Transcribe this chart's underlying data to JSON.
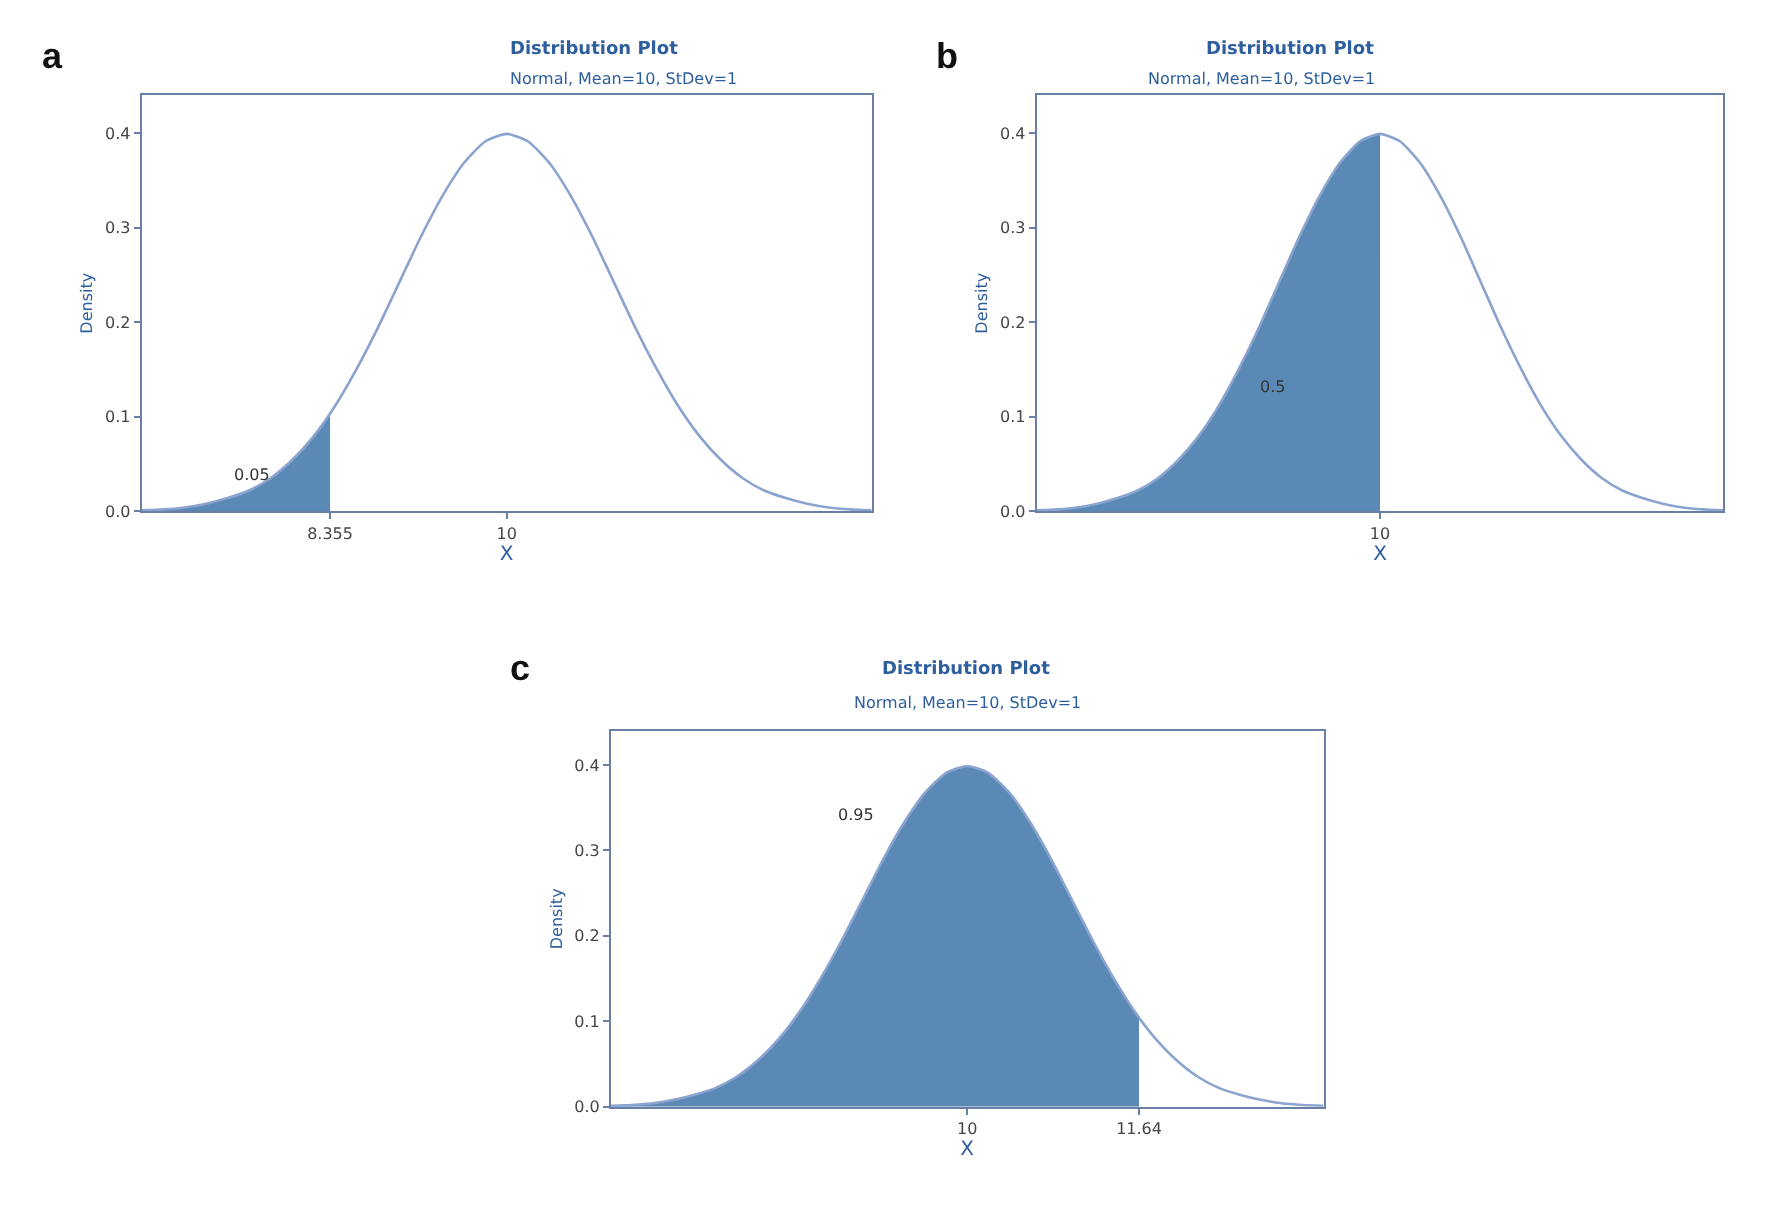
{
  "chart_data": [
    {
      "type": "line",
      "title": "Distribution Plot",
      "subtitle": "Normal, Mean=10, StDev=1",
      "xlabel": "X",
      "ylabel": "Density",
      "xlim": [
        6.6,
        13.4
      ],
      "ylim": [
        0,
        0.44
      ],
      "xticks": [
        8.355,
        10
      ],
      "yticks": [
        {
          "value": 0,
          "label": "0.0"
        },
        {
          "value": 0.1,
          "label": "0.1"
        },
        {
          "value": 0.2,
          "label": "0.2"
        },
        {
          "value": 0.3,
          "label": "0.3"
        },
        {
          "value": 0.4,
          "label": "0.4"
        }
      ],
      "marker": "none",
      "line_style": "solid",
      "series": [
        {
          "type": "area",
          "color": "#5b89b6",
          "x": [
            6.6,
            6.8,
            7.0,
            7.2,
            7.4,
            7.6,
            7.8,
            8.0,
            8.2,
            8.355
          ],
          "values": [
            0.001,
            0.002,
            0.004,
            0.008,
            0.014,
            0.022,
            0.035,
            0.054,
            0.079,
            0.103
          ]
        },
        {
          "color": "#8aa4cf",
          "x": [
            6.6,
            6.8,
            7.0,
            7.2,
            7.4,
            7.6,
            7.8,
            8.0,
            8.2,
            8.4,
            8.6,
            8.8,
            9.0,
            9.2,
            9.4,
            9.6,
            9.8,
            10.0,
            10.2,
            10.4,
            10.6,
            10.8,
            11.0,
            11.2,
            11.4,
            11.6,
            11.8,
            12.0,
            12.2,
            12.4,
            12.6,
            12.8,
            13.0,
            13.2,
            13.4
          ],
          "values": [
            0.001,
            0.002,
            0.004,
            0.008,
            0.014,
            0.022,
            0.035,
            0.054,
            0.079,
            0.111,
            0.15,
            0.194,
            0.242,
            0.29,
            0.333,
            0.368,
            0.391,
            0.399,
            0.391,
            0.368,
            0.333,
            0.29,
            0.242,
            0.194,
            0.15,
            0.111,
            0.079,
            0.054,
            0.035,
            0.022,
            0.014,
            0.008,
            0.004,
            0.002,
            0.001
          ]
        }
      ],
      "annotations": [
        "a",
        "0.05"
      ]
    },
    {
      "type": "line",
      "title": "Distribution Plot",
      "subtitle": "Normal, Mean=10, StDev=1",
      "xlabel": "X",
      "ylabel": "Density",
      "categories": [
        null,
        null,
        null,
        null,
        null,
        null,
        null,
        null,
        null,
        null,
        null,
        null,
        null,
        null,
        null,
        null,
        null,
        "10",
        null,
        null,
        null,
        null,
        null,
        null,
        null,
        null,
        null,
        null,
        null,
        null,
        null,
        null,
        null,
        null,
        null
      ],
      "ylim": [
        0,
        0.44
      ],
      "yticks": [
        {
          "value": 0,
          "label": "0.0"
        },
        {
          "value": 0.1,
          "label": "0.1"
        },
        {
          "value": 0.2,
          "label": "0.2"
        },
        {
          "value": 0.3,
          "label": "0.3"
        },
        {
          "value": 0.4,
          "label": "0.4"
        }
      ],
      "marker": "none",
      "line_style": "solid",
      "series": [
        {
          "type": "area",
          "color": "#5b89b6",
          "values": [
            0.001,
            0.002,
            0.004,
            0.008,
            0.014,
            0.022,
            0.035,
            0.054,
            0.079,
            0.111,
            0.15,
            0.194,
            0.242,
            0.29,
            0.333,
            0.368,
            0.391,
            0.399,
            null,
            null,
            null,
            null,
            null,
            null,
            null,
            null,
            null,
            null,
            null,
            null,
            null,
            null,
            null,
            null,
            null
          ]
        },
        {
          "color": "#8aa4cf",
          "values": [
            0.001,
            0.002,
            0.004,
            0.008,
            0.014,
            0.022,
            0.035,
            0.054,
            0.079,
            0.111,
            0.15,
            0.194,
            0.242,
            0.29,
            0.333,
            0.368,
            0.391,
            0.399,
            0.391,
            0.368,
            0.333,
            0.29,
            0.242,
            0.194,
            0.15,
            0.111,
            0.079,
            0.054,
            0.035,
            0.022,
            0.014,
            0.008,
            0.004,
            0.002,
            0.001
          ]
        }
      ],
      "annotations": [
        "b",
        "0.5"
      ]
    },
    {
      "type": "line",
      "title": "Distribution Plot",
      "subtitle": "Normal, Mean=10, StDev=1",
      "xlabel": "X",
      "ylabel": "Density",
      "xlim": [
        6.6,
        13.4
      ],
      "ylim": [
        0,
        0.44
      ],
      "xticks": [
        10,
        11.64
      ],
      "yticks": [
        {
          "value": 0,
          "label": "0.0"
        },
        {
          "value": 0.1,
          "label": "0.1"
        },
        {
          "value": 0.2,
          "label": "0.2"
        },
        {
          "value": 0.3,
          "label": "0.3"
        },
        {
          "value": 0.4,
          "label": "0.4"
        }
      ],
      "marker": "none",
      "line_style": "solid",
      "series": [
        {
          "type": "area",
          "color": "#5b89b6",
          "x": [
            6.6,
            6.8,
            7.0,
            7.2,
            7.4,
            7.6,
            7.8,
            8.0,
            8.2,
            8.4,
            8.6,
            8.8,
            9.0,
            9.2,
            9.4,
            9.6,
            9.8,
            10.0,
            10.2,
            10.4,
            10.6,
            10.8,
            11.0,
            11.2,
            11.4,
            11.64
          ],
          "values": [
            0.001,
            0.002,
            0.004,
            0.008,
            0.014,
            0.022,
            0.035,
            0.054,
            0.079,
            0.111,
            0.15,
            0.194,
            0.242,
            0.29,
            0.333,
            0.368,
            0.391,
            0.399,
            0.391,
            0.368,
            0.333,
            0.29,
            0.242,
            0.194,
            0.15,
            0.104
          ]
        },
        {
          "color": "#8aa4cf",
          "x": [
            6.6,
            6.8,
            7.0,
            7.2,
            7.4,
            7.6,
            7.8,
            8.0,
            8.2,
            8.4,
            8.6,
            8.8,
            9.0,
            9.2,
            9.4,
            9.6,
            9.8,
            10.0,
            10.2,
            10.4,
            10.6,
            10.8,
            11.0,
            11.2,
            11.4,
            11.6,
            11.8,
            12.0,
            12.2,
            12.4,
            12.6,
            12.8,
            13.0,
            13.2,
            13.4
          ],
          "values": [
            0.001,
            0.002,
            0.004,
            0.008,
            0.014,
            0.022,
            0.035,
            0.054,
            0.079,
            0.111,
            0.15,
            0.194,
            0.242,
            0.29,
            0.333,
            0.368,
            0.391,
            0.399,
            0.391,
            0.368,
            0.333,
            0.29,
            0.242,
            0.194,
            0.15,
            0.111,
            0.079,
            0.054,
            0.035,
            0.022,
            0.014,
            0.008,
            0.004,
            0.002,
            0.001
          ]
        }
      ],
      "annotations": [
        "c",
        "0.95"
      ]
    }
  ]
}
